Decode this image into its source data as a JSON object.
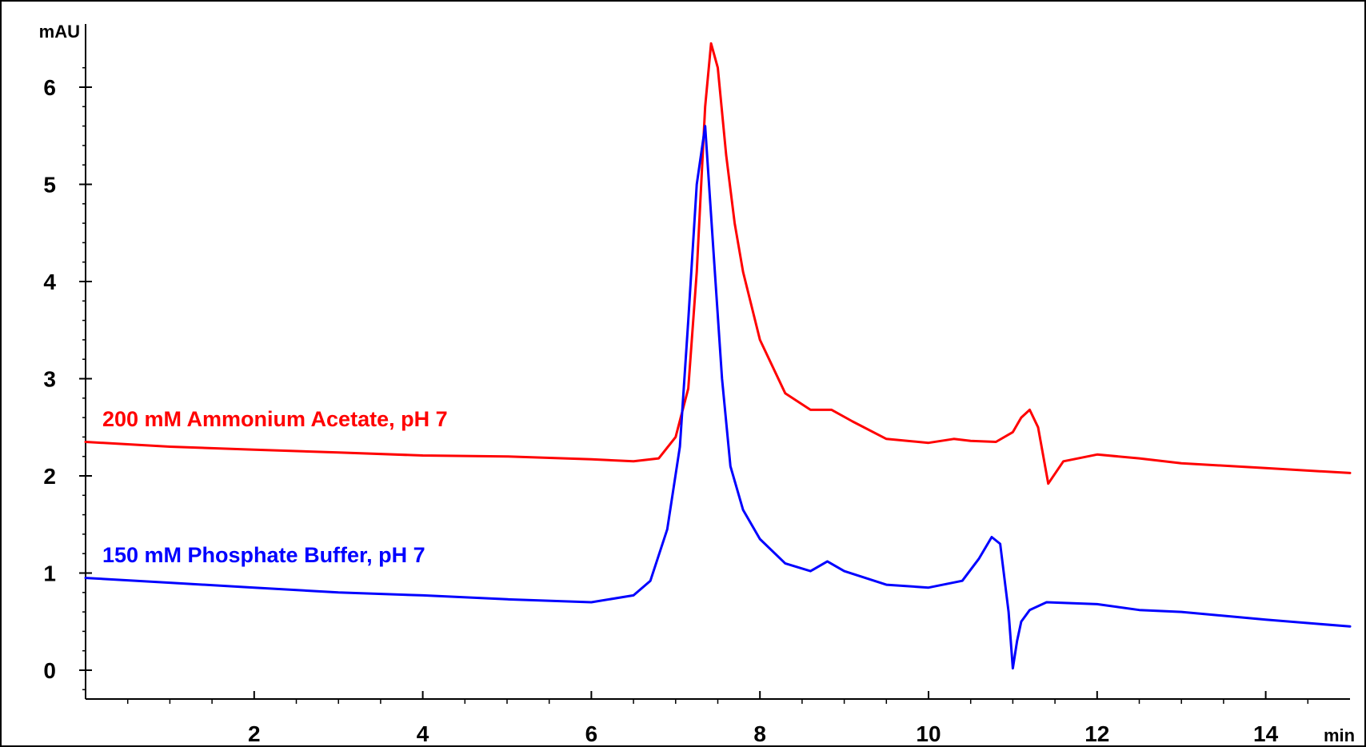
{
  "chart_data": {
    "type": "line",
    "title": "",
    "xlabel": "",
    "ylabel": "",
    "x_unit": "min",
    "y_unit": "mAU",
    "xlim": [
      0,
      15
    ],
    "ylim": [
      -0.3,
      6.6
    ],
    "x_ticks": [
      2,
      4,
      6,
      8,
      10,
      12,
      14
    ],
    "y_ticks": [
      0,
      1,
      2,
      3,
      4,
      5,
      6
    ],
    "grid": false,
    "legend": "inline labels",
    "series": [
      {
        "name": "200 mM Ammonium Acetate, pH 7",
        "color": "#ff0000",
        "x": [
          0,
          1,
          2,
          3,
          4,
          5,
          6,
          6.5,
          6.8,
          7.0,
          7.15,
          7.25,
          7.35,
          7.42,
          7.5,
          7.6,
          7.7,
          7.8,
          8.0,
          8.3,
          8.6,
          8.85,
          9.1,
          9.5,
          10.0,
          10.3,
          10.5,
          10.8,
          11.0,
          11.1,
          11.2,
          11.3,
          11.42,
          11.6,
          12.0,
          12.5,
          13.0,
          14.0,
          15.0
        ],
        "y": [
          2.35,
          2.3,
          2.27,
          2.24,
          2.21,
          2.2,
          2.17,
          2.15,
          2.18,
          2.4,
          2.9,
          4.1,
          5.8,
          6.45,
          6.2,
          5.3,
          4.6,
          4.1,
          3.4,
          2.85,
          2.68,
          2.68,
          2.56,
          2.38,
          2.34,
          2.38,
          2.36,
          2.35,
          2.45,
          2.6,
          2.68,
          2.5,
          1.92,
          2.15,
          2.22,
          2.18,
          2.13,
          2.08,
          2.03
        ]
      },
      {
        "name": "150 mM Phosphate Buffer, pH 7",
        "color": "#0000ff",
        "x": [
          0,
          1,
          2,
          3,
          4,
          5,
          6,
          6.5,
          6.7,
          6.9,
          7.05,
          7.15,
          7.25,
          7.35,
          7.45,
          7.55,
          7.65,
          7.8,
          8.0,
          8.3,
          8.6,
          8.8,
          9.0,
          9.5,
          10.0,
          10.4,
          10.6,
          10.75,
          10.85,
          10.95,
          11.0,
          11.05,
          11.1,
          11.2,
          11.4,
          12.0,
          12.5,
          13.0,
          14.0,
          15.0
        ],
        "y": [
          0.95,
          0.9,
          0.85,
          0.8,
          0.77,
          0.73,
          0.7,
          0.77,
          0.92,
          1.45,
          2.3,
          3.6,
          5.0,
          5.6,
          4.3,
          3.0,
          2.1,
          1.65,
          1.35,
          1.1,
          1.02,
          1.12,
          1.02,
          0.88,
          0.85,
          0.92,
          1.15,
          1.37,
          1.3,
          0.6,
          0.02,
          0.3,
          0.5,
          0.62,
          0.7,
          0.68,
          0.62,
          0.6,
          0.52,
          0.45
        ]
      }
    ]
  }
}
